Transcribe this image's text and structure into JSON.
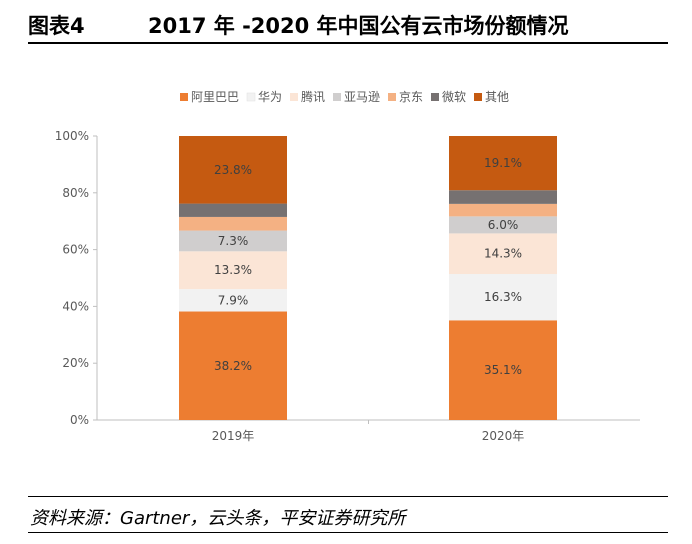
{
  "figure": {
    "label": "图表4",
    "title": "2017 年 -2020 年中国公有云市场份额情况",
    "source": "资料来源：Gartner，云头条，平安证券研究所"
  },
  "chart_data": {
    "type": "bar",
    "stacked": true,
    "percent_stacked": true,
    "categories": [
      "2019年",
      "2020年"
    ],
    "ylim": [
      0,
      100
    ],
    "yticks": [
      "0%",
      "20%",
      "40%",
      "60%",
      "80%",
      "100%"
    ],
    "legend_position": "top",
    "series": [
      {
        "name": "阿里巴巴",
        "color": "#ED7D31",
        "values": [
          38.2,
          35.1
        ],
        "labels": [
          "38.2%",
          "35.1%"
        ]
      },
      {
        "name": "华为",
        "color": "#F2F2F2",
        "values": [
          7.9,
          16.3
        ],
        "labels": [
          "7.9%",
          "16.3%"
        ]
      },
      {
        "name": "腾讯",
        "color": "#FBE5D6",
        "values": [
          13.3,
          14.3
        ],
        "labels": [
          "13.3%",
          "14.3%"
        ]
      },
      {
        "name": "亚马逊",
        "color": "#D0CECE",
        "values": [
          7.3,
          6.0
        ],
        "labels": [
          "7.3%",
          "6.0%"
        ]
      },
      {
        "name": "京东",
        "color": "#F4B183",
        "values": [
          4.8,
          4.4
        ],
        "labels": [
          "",
          ""
        ]
      },
      {
        "name": "微软",
        "color": "#767171",
        "values": [
          4.7,
          4.8
        ],
        "labels": [
          "",
          ""
        ]
      },
      {
        "name": "其他",
        "color": "#C55A11",
        "values": [
          23.8,
          19.1
        ],
        "labels": [
          "23.8%",
          "19.1%"
        ]
      }
    ]
  }
}
